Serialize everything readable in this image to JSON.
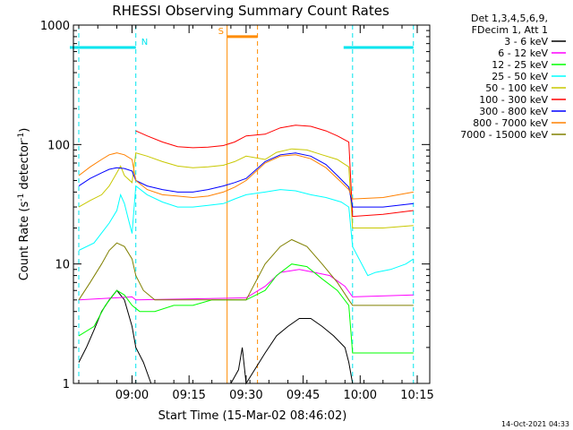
{
  "chart_data": {
    "type": "line",
    "title": "RHESSI Observing Summary Count Rates",
    "xlabel": "Start Time (15-Mar-02 08:46:02)",
    "ylabel_main": "Count Rate (s",
    "ylabel_sup1": "-1",
    "ylabel_mid": " detector",
    "ylabel_sup2": "-1",
    "ylabel_end": ")",
    "yscale": "log",
    "ylim": [
      1,
      1000
    ],
    "xlim": [
      0,
      89
    ],
    "x_units": "minutes since 08:46:02",
    "x_ticks": [
      {
        "label": "09:00",
        "x": 14
      },
      {
        "label": "09:15",
        "x": 29
      },
      {
        "label": "09:30",
        "x": 44
      },
      {
        "label": "09:45",
        "x": 59
      },
      {
        "label": "10:00",
        "x": 74
      },
      {
        "label": "10:15",
        "x": 89
      }
    ],
    "y_ticks": [
      {
        "label": "1",
        "y": 1
      },
      {
        "label": "10",
        "y": 10
      },
      {
        "label": "100",
        "y": 100
      },
      {
        "label": "1000",
        "y": 1000
      }
    ],
    "legend_header": [
      "Det 1,3,4,5,6,9,",
      "FDecim 1, Att 1"
    ],
    "timestamp": "14-Oct-2021 04:33",
    "flags": [
      {
        "label": "N",
        "kind": "night",
        "color": "#00e5ee",
        "start": 0,
        "end": 15,
        "level": 650
      },
      {
        "label": "S",
        "kind": "saa",
        "color": "#ff8c00",
        "start": 39,
        "end": 47,
        "level": 800
      },
      {
        "label": "",
        "kind": "night",
        "color": "#00e5ee",
        "start": 72,
        "end": 88,
        "level": 650
      }
    ],
    "series": [
      {
        "name": "3 - 6 keV",
        "color": "#000000",
        "width": 1,
        "points": [
          [
            0,
            1.5
          ],
          [
            2,
            2
          ],
          [
            4,
            2.8
          ],
          [
            6,
            4
          ],
          [
            8,
            5
          ],
          [
            10,
            6
          ],
          [
            12,
            5
          ],
          [
            14,
            3
          ],
          [
            15,
            2
          ],
          [
            17,
            1.5
          ],
          [
            19,
            1
          ],
          [
            40,
            1
          ],
          [
            42,
            1.3
          ],
          [
            43,
            2
          ],
          [
            44,
            1
          ],
          [
            49,
            1.8
          ],
          [
            52,
            2.5
          ],
          [
            55,
            3
          ],
          [
            58,
            3.5
          ],
          [
            61,
            3.5
          ],
          [
            64,
            3
          ],
          [
            67,
            2.5
          ],
          [
            70,
            2
          ],
          [
            71,
            1.5
          ],
          [
            72,
            1
          ]
        ]
      },
      {
        "name": "6 - 12 keV",
        "color": "#ff00ff",
        "width": 1,
        "points": [
          [
            0,
            5
          ],
          [
            14,
            5.3
          ],
          [
            15,
            5
          ],
          [
            44,
            5.2
          ],
          [
            49,
            6.5
          ],
          [
            53,
            8.5
          ],
          [
            58,
            9
          ],
          [
            62,
            8.5
          ],
          [
            66,
            8
          ],
          [
            70,
            6.5
          ],
          [
            72,
            5.3
          ],
          [
            88,
            5.5
          ]
        ]
      },
      {
        "name": "12 - 25 keV",
        "color": "#00ff00",
        "width": 1,
        "points": [
          [
            0,
            2.5
          ],
          [
            4,
            3
          ],
          [
            7,
            4.5
          ],
          [
            10,
            6
          ],
          [
            12,
            5.5
          ],
          [
            14,
            4.5
          ],
          [
            16,
            4
          ],
          [
            20,
            4
          ],
          [
            25,
            4.5
          ],
          [
            30,
            4.5
          ],
          [
            35,
            5
          ],
          [
            40,
            5
          ],
          [
            44,
            5
          ],
          [
            49,
            6
          ],
          [
            52,
            8
          ],
          [
            56,
            10
          ],
          [
            60,
            9.5
          ],
          [
            64,
            7.5
          ],
          [
            68,
            6
          ],
          [
            71,
            4.5
          ],
          [
            72,
            1.8
          ],
          [
            80,
            1.8
          ],
          [
            88,
            1.8
          ]
        ]
      },
      {
        "name": "25 - 50 keV",
        "color": "#00ffff",
        "width": 1,
        "points": [
          [
            0,
            13
          ],
          [
            4,
            15
          ],
          [
            8,
            22
          ],
          [
            10,
            28
          ],
          [
            11,
            38
          ],
          [
            12,
            32
          ],
          [
            13,
            24
          ],
          [
            14,
            18
          ],
          [
            15,
            45
          ],
          [
            18,
            38
          ],
          [
            22,
            33
          ],
          [
            26,
            30
          ],
          [
            30,
            30
          ],
          [
            34,
            31
          ],
          [
            38,
            32
          ],
          [
            41,
            35
          ],
          [
            44,
            38
          ],
          [
            49,
            40
          ],
          [
            53,
            42
          ],
          [
            57,
            41
          ],
          [
            61,
            38
          ],
          [
            65,
            36
          ],
          [
            69,
            33
          ],
          [
            71,
            30
          ],
          [
            72,
            14
          ],
          [
            76,
            8
          ],
          [
            78,
            8.5
          ],
          [
            82,
            9
          ],
          [
            86,
            10
          ],
          [
            88,
            11
          ]
        ]
      },
      {
        "name": "50 - 100 keV",
        "color": "#c8c800",
        "width": 1,
        "points": [
          [
            0,
            30
          ],
          [
            3,
            34
          ],
          [
            6,
            38
          ],
          [
            8,
            45
          ],
          [
            10,
            58
          ],
          [
            11,
            66
          ],
          [
            12,
            55
          ],
          [
            14,
            48
          ],
          [
            15,
            85
          ],
          [
            18,
            80
          ],
          [
            22,
            72
          ],
          [
            26,
            66
          ],
          [
            30,
            64
          ],
          [
            34,
            65
          ],
          [
            38,
            67
          ],
          [
            41,
            72
          ],
          [
            44,
            80
          ],
          [
            49,
            75
          ],
          [
            52,
            86
          ],
          [
            56,
            92
          ],
          [
            60,
            90
          ],
          [
            64,
            82
          ],
          [
            68,
            75
          ],
          [
            71,
            65
          ],
          [
            72,
            20
          ],
          [
            80,
            20
          ],
          [
            88,
            21
          ]
        ]
      },
      {
        "name": "100 - 300 keV",
        "color": "#ff0000",
        "width": 1,
        "points": [
          [
            15,
            130
          ],
          [
            18,
            118
          ],
          [
            22,
            105
          ],
          [
            26,
            96
          ],
          [
            30,
            94
          ],
          [
            34,
            95
          ],
          [
            38,
            98
          ],
          [
            41,
            105
          ],
          [
            44,
            118
          ],
          [
            49,
            122
          ],
          [
            53,
            138
          ],
          [
            57,
            145
          ],
          [
            61,
            142
          ],
          [
            65,
            130
          ],
          [
            68,
            118
          ],
          [
            71,
            105
          ],
          [
            72,
            25
          ],
          [
            80,
            26
          ],
          [
            88,
            28
          ]
        ]
      },
      {
        "name": "300 - 800 keV",
        "color": "#0000ff",
        "width": 1,
        "points": [
          [
            0,
            45
          ],
          [
            3,
            52
          ],
          [
            6,
            58
          ],
          [
            8,
            62
          ],
          [
            10,
            64
          ],
          [
            12,
            63
          ],
          [
            14,
            60
          ],
          [
            15,
            50
          ],
          [
            18,
            45
          ],
          [
            22,
            42
          ],
          [
            26,
            40
          ],
          [
            30,
            40
          ],
          [
            34,
            42
          ],
          [
            38,
            45
          ],
          [
            41,
            48
          ],
          [
            44,
            52
          ],
          [
            49,
            72
          ],
          [
            53,
            82
          ],
          [
            57,
            85
          ],
          [
            61,
            80
          ],
          [
            65,
            68
          ],
          [
            68,
            55
          ],
          [
            71,
            44
          ],
          [
            72,
            30
          ],
          [
            80,
            30
          ],
          [
            88,
            32
          ]
        ]
      },
      {
        "name": "800 - 7000 keV",
        "color": "#ff8000",
        "width": 1,
        "points": [
          [
            0,
            55
          ],
          [
            3,
            65
          ],
          [
            6,
            75
          ],
          [
            8,
            82
          ],
          [
            10,
            85
          ],
          [
            12,
            82
          ],
          [
            14,
            75
          ],
          [
            15,
            50
          ],
          [
            18,
            42
          ],
          [
            22,
            38
          ],
          [
            26,
            37
          ],
          [
            30,
            36
          ],
          [
            34,
            37
          ],
          [
            38,
            40
          ],
          [
            41,
            44
          ],
          [
            44,
            50
          ],
          [
            49,
            70
          ],
          [
            53,
            80
          ],
          [
            57,
            82
          ],
          [
            61,
            76
          ],
          [
            65,
            64
          ],
          [
            68,
            52
          ],
          [
            71,
            42
          ],
          [
            72,
            35
          ],
          [
            80,
            36
          ],
          [
            88,
            40
          ]
        ]
      },
      {
        "name": "7000 - 15000 keV",
        "color": "#808000",
        "width": 1,
        "points": [
          [
            0,
            5
          ],
          [
            3,
            7
          ],
          [
            6,
            10
          ],
          [
            8,
            13
          ],
          [
            10,
            15
          ],
          [
            12,
            14
          ],
          [
            14,
            11
          ],
          [
            15,
            8
          ],
          [
            17,
            6
          ],
          [
            20,
            5
          ],
          [
            30,
            5
          ],
          [
            38,
            5
          ],
          [
            44,
            5
          ],
          [
            49,
            10
          ],
          [
            53,
            14
          ],
          [
            56,
            16
          ],
          [
            60,
            14
          ],
          [
            64,
            10
          ],
          [
            68,
            7
          ],
          [
            71,
            5
          ],
          [
            72,
            4.5
          ],
          [
            88,
            4.5
          ]
        ]
      }
    ]
  }
}
